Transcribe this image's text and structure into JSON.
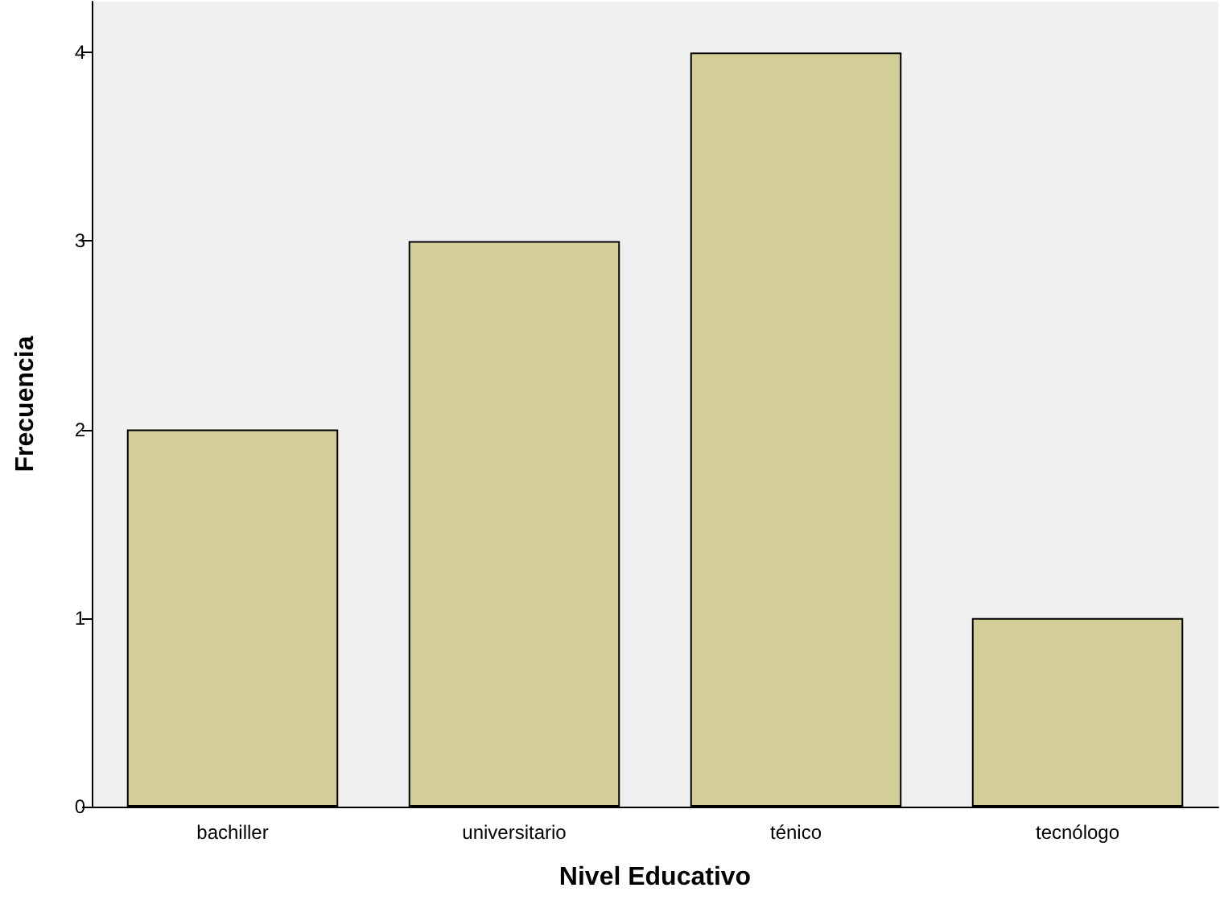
{
  "chart_data": {
    "type": "bar",
    "xlabel": "Nivel Educativo",
    "ylabel": "Frecuencia",
    "categories": [
      "bachiller",
      "universitario",
      "ténico",
      "tecnólogo"
    ],
    "values": [
      2,
      3,
      4,
      1
    ],
    "color": "#d3ce97",
    "ylim": [
      0,
      4.27
    ],
    "yticks": [
      0,
      1,
      2,
      3,
      4
    ],
    "grid": false
  }
}
